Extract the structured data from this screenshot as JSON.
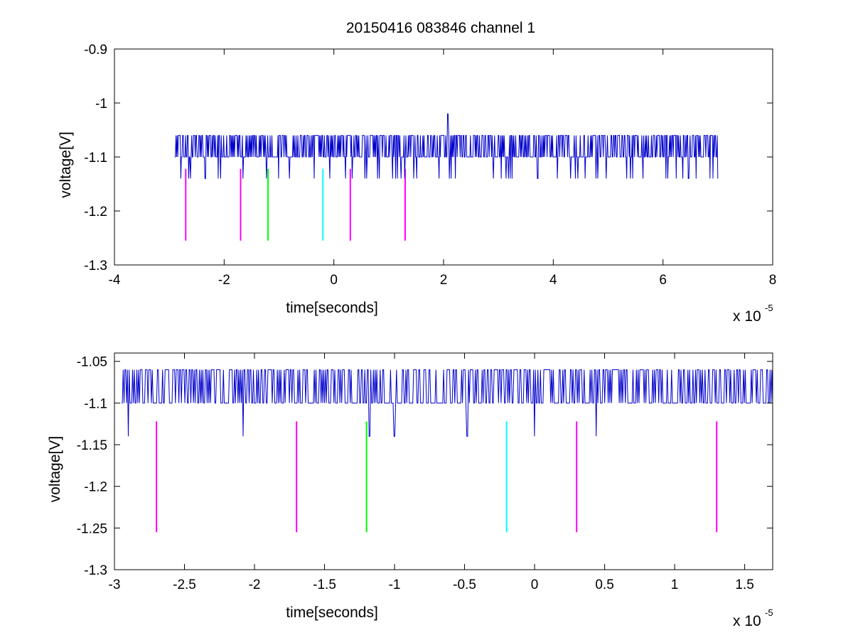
{
  "figure_title": "20150416 083846 channel 1",
  "chart_data": [
    {
      "type": "line",
      "title": "20150416 083846 channel 1",
      "xlabel": "time[seconds]",
      "ylabel": "voltage[V]",
      "x_exponent_base": "x 10",
      "x_exponent_power": "-5",
      "xlim": [
        -4,
        8
      ],
      "ylim": [
        -1.3,
        -0.9
      ],
      "xticks": [
        -4,
        -2,
        0,
        2,
        4,
        6,
        8
      ],
      "xtick_labels": [
        "-4",
        "-2",
        "0",
        "2",
        "4",
        "6",
        "8"
      ],
      "yticks": [
        -1.3,
        -1.2,
        -1.1,
        -1.0,
        -0.9
      ],
      "ytick_labels": [
        "-1.3",
        "-1.2",
        "-1.1",
        "-1",
        "-0.9"
      ],
      "grid": false,
      "signal": {
        "color": "#0000cc",
        "x_start": -2.9,
        "x_end": 7.0,
        "baseline": -1.1,
        "high": -1.06,
        "low": -1.14,
        "spike": {
          "x": 2.08,
          "y": -1.02
        }
      },
      "markers": [
        {
          "x": -2.7,
          "y_top": -1.122,
          "y_bottom": -1.255,
          "color": "#ff00ff"
        },
        {
          "x": -1.7,
          "y_top": -1.122,
          "y_bottom": -1.255,
          "color": "#ff00ff"
        },
        {
          "x": -1.2,
          "y_top": -1.122,
          "y_bottom": -1.255,
          "color": "#00ff00"
        },
        {
          "x": -0.2,
          "y_top": -1.122,
          "y_bottom": -1.255,
          "color": "#00ffff"
        },
        {
          "x": 0.3,
          "y_top": -1.122,
          "y_bottom": -1.255,
          "color": "#ff00ff"
        },
        {
          "x": 1.3,
          "y_top": -1.122,
          "y_bottom": -1.255,
          "color": "#ff00ff"
        }
      ]
    },
    {
      "type": "line",
      "xlabel": "time[seconds]",
      "ylabel": "voltage[V]",
      "x_exponent_base": "x 10",
      "x_exponent_power": "-5",
      "xlim": [
        -3.0,
        1.7
      ],
      "ylim": [
        -1.3,
        -1.04
      ],
      "xticks": [
        -3,
        -2.5,
        -2,
        -1.5,
        -1,
        -0.5,
        0,
        0.5,
        1,
        1.5
      ],
      "xtick_labels": [
        "-3",
        "-2.5",
        "-2",
        "-1.5",
        "-1",
        "-0.5",
        "0",
        "0.5",
        "1",
        "1.5"
      ],
      "yticks": [
        -1.3,
        -1.25,
        -1.2,
        -1.15,
        -1.1,
        -1.05
      ],
      "ytick_labels": [
        "-1.3",
        "-1.25",
        "-1.2",
        "-1.15",
        "-1.1",
        "-1.05"
      ],
      "grid": false,
      "signal": {
        "color": "#0000cc",
        "x_start": -2.95,
        "x_end": 1.7,
        "baseline": -1.1,
        "high": -1.06,
        "low": -1.14,
        "dips": [
          -2.9,
          -2.08,
          -1.18,
          -1.0,
          -0.48,
          0.0,
          0.44
        ]
      },
      "markers": [
        {
          "x": -2.7,
          "y_top": -1.122,
          "y_bottom": -1.255,
          "color": "#ff00ff"
        },
        {
          "x": -1.7,
          "y_top": -1.122,
          "y_bottom": -1.255,
          "color": "#ff00ff"
        },
        {
          "x": -1.2,
          "y_top": -1.122,
          "y_bottom": -1.255,
          "color": "#00ff00"
        },
        {
          "x": -0.2,
          "y_top": -1.122,
          "y_bottom": -1.255,
          "color": "#00ffff"
        },
        {
          "x": 0.3,
          "y_top": -1.122,
          "y_bottom": -1.255,
          "color": "#ff00ff"
        },
        {
          "x": 1.3,
          "y_top": -1.122,
          "y_bottom": -1.255,
          "color": "#ff00ff"
        }
      ]
    }
  ]
}
